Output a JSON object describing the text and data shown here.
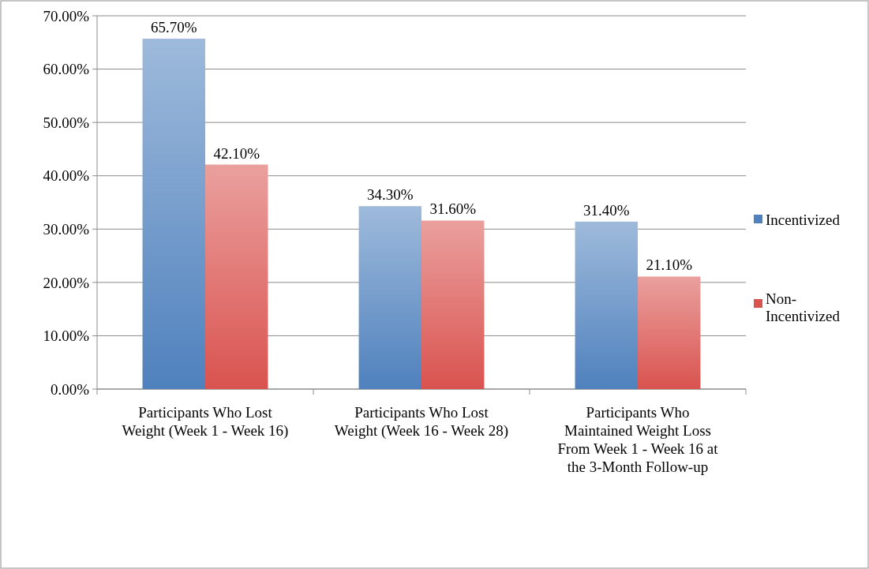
{
  "chart_data": {
    "type": "bar",
    "categories": [
      "Participants Who Lost Weight (Week 1 - Week 16)",
      "Participants Who Lost Weight (Week 16 - Week 28)",
      "Participants Who Maintained Weight Loss From Week 1 - Week 16 at the 3-Month Follow-up"
    ],
    "series": [
      {
        "name": "Incentivized",
        "color": "#4f81bd",
        "values": [
          65.7,
          34.3,
          31.4
        ],
        "value_labels": [
          "65.70%",
          "34.30%",
          "31.40%"
        ]
      },
      {
        "name": "Non-Incentivized",
        "color": "#d9534f",
        "values": [
          42.1,
          31.6,
          21.1
        ],
        "value_labels": [
          "42.10%",
          "31.60%",
          "21.10%"
        ]
      }
    ],
    "ylim": [
      0,
      70
    ],
    "yticks": [
      {
        "value": 0,
        "label": "0.00%"
      },
      {
        "value": 10,
        "label": "10.00%"
      },
      {
        "value": 20,
        "label": "20.00%"
      },
      {
        "value": 30,
        "label": "30.00%"
      },
      {
        "value": 40,
        "label": "40.00%"
      },
      {
        "value": 50,
        "label": "50.00%"
      },
      {
        "value": 60,
        "label": "60.00%"
      },
      {
        "value": 70,
        "label": "70.00%"
      }
    ],
    "grid": "y",
    "legend": "right"
  }
}
